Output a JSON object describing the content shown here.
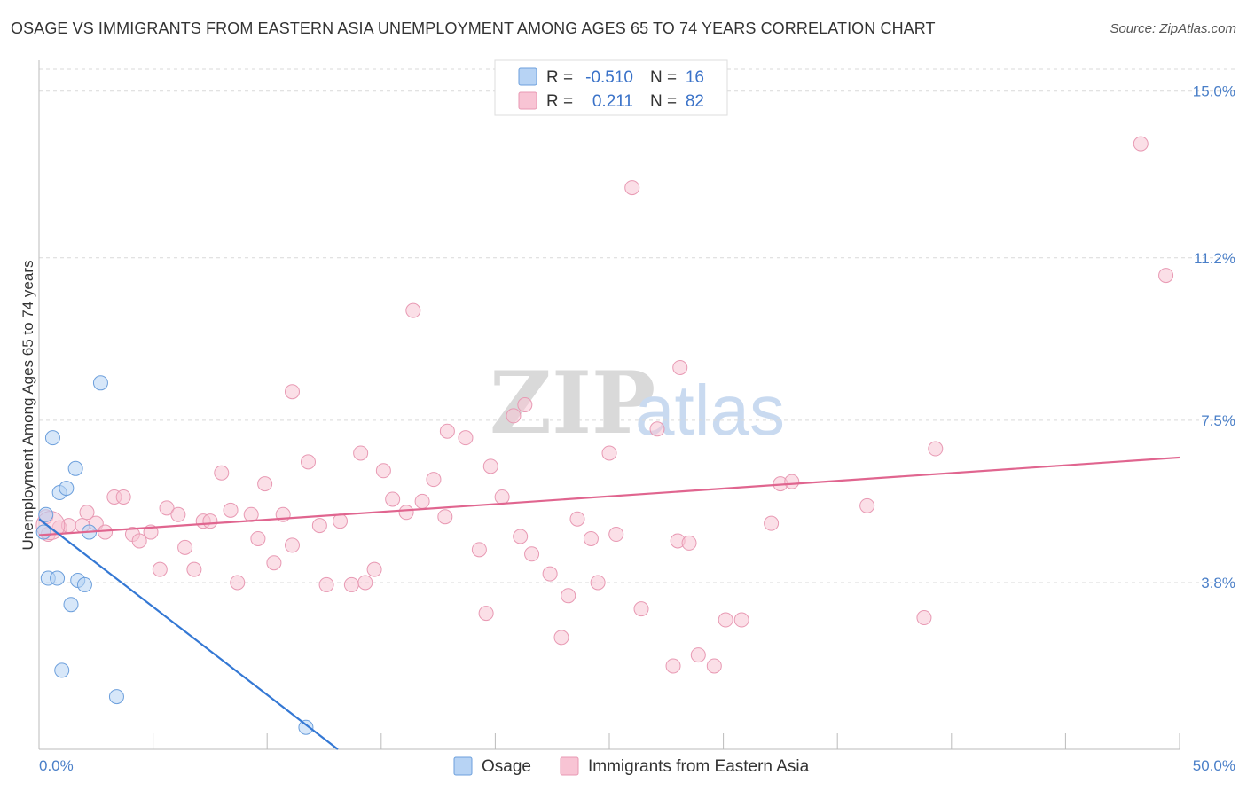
{
  "title": "OSAGE VS IMMIGRANTS FROM EASTERN ASIA UNEMPLOYMENT AMONG AGES 65 TO 74 YEARS CORRELATION CHART",
  "source": "Source: ZipAtlas.com",
  "watermark": {
    "zip": "ZIP",
    "atlas": "atlas"
  },
  "colors": {
    "osage_fill": "#b7d3f4",
    "osage_stroke": "#6c9fdc",
    "osage_line": "#3478d4",
    "imm_fill": "#f8c4d4",
    "imm_stroke": "#e899b3",
    "imm_line": "#e0658f",
    "grid": "#d9d9d9",
    "axis_label": "#4a7fc8"
  },
  "legend": {
    "rows": [
      {
        "r_label": "R =",
        "r_value": "-0.510",
        "n_label": "N =",
        "n_value": "16"
      },
      {
        "r_label": "R =",
        "r_value": "0.211",
        "n_label": "N =",
        "n_value": "82"
      }
    ]
  },
  "chart_data": {
    "type": "scatter",
    "title": "OSAGE VS IMMIGRANTS FROM EASTERN ASIA UNEMPLOYMENT AMONG AGES 65 TO 74 YEARS CORRELATION CHART",
    "xlabel": "",
    "ylabel": "Unemployment Among Ages 65 to 74 years",
    "xlim": [
      0,
      50
    ],
    "ylim": [
      0,
      15.5
    ],
    "x_tick_labels": [
      "0.0%",
      "50.0%"
    ],
    "y_ticks": [
      3.8,
      7.5,
      11.2,
      15.0
    ],
    "y_tick_labels": [
      "3.8%",
      "7.5%",
      "11.2%",
      "15.0%"
    ],
    "grid": true,
    "legend_position": "top-center",
    "series": [
      {
        "name": "Osage",
        "r": -0.51,
        "n": 16,
        "trend": {
          "x": [
            0.0,
            13.1
          ],
          "y": [
            5.25,
            0.0
          ]
        },
        "points": [
          {
            "x": 0.2,
            "y": 4.95
          },
          {
            "x": 0.3,
            "y": 5.35
          },
          {
            "x": 0.4,
            "y": 3.9
          },
          {
            "x": 0.6,
            "y": 7.1
          },
          {
            "x": 0.8,
            "y": 3.9
          },
          {
            "x": 0.9,
            "y": 5.85
          },
          {
            "x": 1.0,
            "y": 1.8
          },
          {
            "x": 1.2,
            "y": 5.95
          },
          {
            "x": 1.4,
            "y": 3.3
          },
          {
            "x": 1.6,
            "y": 6.4
          },
          {
            "x": 1.7,
            "y": 3.85
          },
          {
            "x": 2.0,
            "y": 3.75
          },
          {
            "x": 2.2,
            "y": 4.95
          },
          {
            "x": 2.7,
            "y": 8.35
          },
          {
            "x": 3.4,
            "y": 1.2
          },
          {
            "x": 11.7,
            "y": 0.5
          }
        ]
      },
      {
        "name": "Immigrants from Eastern Asia",
        "r": 0.211,
        "n": 82,
        "trend": {
          "x": [
            0.0,
            50.0
          ],
          "y": [
            4.88,
            6.65
          ]
        },
        "points": [
          {
            "x": 0.3,
            "y": 5.3
          },
          {
            "x": 0.4,
            "y": 4.9
          },
          {
            "x": 0.9,
            "y": 5.05
          },
          {
            "x": 1.3,
            "y": 5.1
          },
          {
            "x": 1.9,
            "y": 5.1
          },
          {
            "x": 2.1,
            "y": 5.4
          },
          {
            "x": 2.5,
            "y": 5.15
          },
          {
            "x": 2.9,
            "y": 4.95
          },
          {
            "x": 3.3,
            "y": 5.75
          },
          {
            "x": 3.7,
            "y": 5.75
          },
          {
            "x": 4.1,
            "y": 4.9
          },
          {
            "x": 4.4,
            "y": 4.75
          },
          {
            "x": 4.9,
            "y": 4.95
          },
          {
            "x": 5.3,
            "y": 4.1
          },
          {
            "x": 5.6,
            "y": 5.5
          },
          {
            "x": 6.1,
            "y": 5.35
          },
          {
            "x": 6.4,
            "y": 4.6
          },
          {
            "x": 6.8,
            "y": 4.1
          },
          {
            "x": 7.2,
            "y": 5.2
          },
          {
            "x": 7.5,
            "y": 5.2
          },
          {
            "x": 8.0,
            "y": 6.3
          },
          {
            "x": 8.4,
            "y": 5.45
          },
          {
            "x": 8.7,
            "y": 3.8
          },
          {
            "x": 9.3,
            "y": 5.35
          },
          {
            "x": 9.6,
            "y": 4.8
          },
          {
            "x": 9.9,
            "y": 6.05
          },
          {
            "x": 10.3,
            "y": 4.25
          },
          {
            "x": 10.7,
            "y": 5.35
          },
          {
            "x": 11.1,
            "y": 4.65
          },
          {
            "x": 11.1,
            "y": 8.15
          },
          {
            "x": 11.8,
            "y": 6.55
          },
          {
            "x": 12.3,
            "y": 5.1
          },
          {
            "x": 12.6,
            "y": 3.75
          },
          {
            "x": 13.2,
            "y": 5.2
          },
          {
            "x": 13.7,
            "y": 3.75
          },
          {
            "x": 14.1,
            "y": 6.75
          },
          {
            "x": 14.3,
            "y": 3.8
          },
          {
            "x": 14.7,
            "y": 4.1
          },
          {
            "x": 15.1,
            "y": 6.35
          },
          {
            "x": 15.5,
            "y": 5.7
          },
          {
            "x": 16.1,
            "y": 5.4
          },
          {
            "x": 16.4,
            "y": 10.0
          },
          {
            "x": 16.8,
            "y": 5.65
          },
          {
            "x": 17.3,
            "y": 6.15
          },
          {
            "x": 17.8,
            "y": 5.3
          },
          {
            "x": 17.9,
            "y": 7.25
          },
          {
            "x": 18.7,
            "y": 7.1
          },
          {
            "x": 19.3,
            "y": 4.55
          },
          {
            "x": 19.6,
            "y": 3.1
          },
          {
            "x": 19.8,
            "y": 6.45
          },
          {
            "x": 20.3,
            "y": 5.75
          },
          {
            "x": 20.8,
            "y": 7.6
          },
          {
            "x": 21.1,
            "y": 4.85
          },
          {
            "x": 21.3,
            "y": 7.85
          },
          {
            "x": 21.6,
            "y": 4.45
          },
          {
            "x": 22.4,
            "y": 4.0
          },
          {
            "x": 22.9,
            "y": 2.55
          },
          {
            "x": 23.2,
            "y": 3.5
          },
          {
            "x": 23.6,
            "y": 5.25
          },
          {
            "x": 24.2,
            "y": 4.8
          },
          {
            "x": 24.5,
            "y": 3.8
          },
          {
            "x": 25.0,
            "y": 6.75
          },
          {
            "x": 25.3,
            "y": 4.9
          },
          {
            "x": 26.0,
            "y": 12.8
          },
          {
            "x": 26.4,
            "y": 3.2
          },
          {
            "x": 27.1,
            "y": 7.3
          },
          {
            "x": 27.8,
            "y": 1.9
          },
          {
            "x": 28.0,
            "y": 4.75
          },
          {
            "x": 28.1,
            "y": 8.7
          },
          {
            "x": 28.5,
            "y": 4.7
          },
          {
            "x": 28.9,
            "y": 2.15
          },
          {
            "x": 29.6,
            "y": 1.9
          },
          {
            "x": 30.1,
            "y": 2.95
          },
          {
            "x": 30.8,
            "y": 2.95
          },
          {
            "x": 32.1,
            "y": 5.15
          },
          {
            "x": 32.5,
            "y": 6.05
          },
          {
            "x": 33.0,
            "y": 6.1
          },
          {
            "x": 36.3,
            "y": 5.55
          },
          {
            "x": 38.8,
            "y": 3.0
          },
          {
            "x": 39.3,
            "y": 6.85
          },
          {
            "x": 48.3,
            "y": 13.8
          },
          {
            "x": 49.4,
            "y": 10.8
          }
        ]
      }
    ]
  }
}
